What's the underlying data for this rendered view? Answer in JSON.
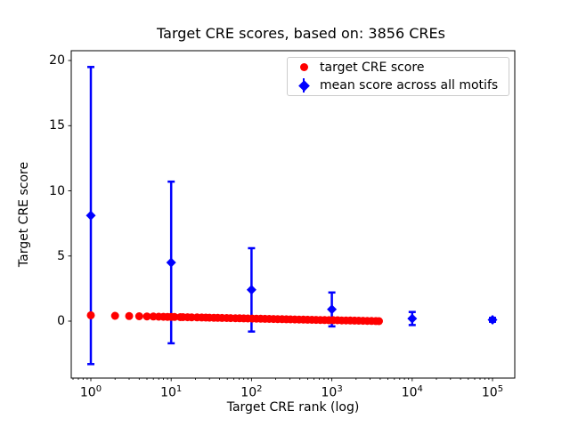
{
  "title": "Target CRE scores, based on: 3856 CREs",
  "colors": {
    "red": "#ff0000",
    "blue": "#0000ff",
    "axis": "#000000",
    "legend_border": "#cccccc",
    "background": "#ffffff"
  },
  "legend": {
    "items": [
      {
        "label": "target CRE score",
        "marker": "red-circle"
      },
      {
        "label": "mean score across all motifs",
        "marker": "blue-diamond-errorbar"
      }
    ]
  },
  "chart_data": {
    "type": "scatter",
    "title": "Target CRE scores, based on: 3856 CREs",
    "xlabel": "Target CRE rank (log)",
    "ylabel": "Target CRE score",
    "x_scale": "log",
    "xlim": [
      0.57,
      189000
    ],
    "ylim": [
      -4.4,
      20.75
    ],
    "x_ticks": [
      1,
      10,
      100,
      1000,
      10000,
      100000
    ],
    "x_tick_exponents": [
      0,
      1,
      2,
      3,
      4,
      5
    ],
    "y_ticks": [
      0,
      5,
      10,
      15,
      20
    ],
    "grid": false,
    "legend_position": "upper right",
    "series": [
      {
        "name": "target CRE score",
        "type": "scatter",
        "marker": "circle",
        "color": "#ff0000",
        "n_points_total": 3856,
        "ranks": [
          1,
          2,
          3,
          4,
          5,
          6,
          7,
          8,
          9,
          10,
          11,
          13,
          14,
          16,
          18,
          21,
          24,
          27,
          30,
          34,
          38,
          43,
          49,
          55,
          63,
          71,
          80,
          90,
          102,
          115,
          130,
          147,
          166,
          188,
          212,
          240,
          271,
          306,
          346,
          391,
          442,
          499,
          564,
          637,
          720,
          814,
          920,
          1039,
          1174,
          1327,
          1500,
          1695,
          1915,
          2164,
          2445,
          2763,
          3122,
          3528,
          3856
        ],
        "scores": [
          0.45,
          0.412,
          0.39,
          0.374,
          0.362,
          0.353,
          0.344,
          0.337,
          0.33,
          0.325,
          0.319,
          0.31,
          0.306,
          0.299,
          0.292,
          0.284,
          0.277,
          0.27,
          0.265,
          0.258,
          0.252,
          0.245,
          0.238,
          0.232,
          0.224,
          0.218,
          0.211,
          0.205,
          0.198,
          0.191,
          0.185,
          0.178,
          0.171,
          0.165,
          0.158,
          0.151,
          0.145,
          0.138,
          0.131,
          0.125,
          0.118,
          0.111,
          0.105,
          0.098,
          0.092,
          0.085,
          0.078,
          0.072,
          0.065,
          0.058,
          0.052,
          0.045,
          0.039,
          0.032,
          0.025,
          0.019,
          0.012,
          0.005,
          0.001
        ]
      },
      {
        "name": "mean score across all motifs",
        "type": "errorbar",
        "marker": "diamond",
        "color": "#0000ff",
        "ranks": [
          1,
          10,
          100,
          1000,
          10000,
          100000
        ],
        "means": [
          8.1,
          4.5,
          2.4,
          0.9,
          0.2,
          0.1
        ],
        "errors": [
          11.4,
          6.2,
          3.2,
          1.3,
          0.5,
          0.15
        ]
      }
    ]
  }
}
